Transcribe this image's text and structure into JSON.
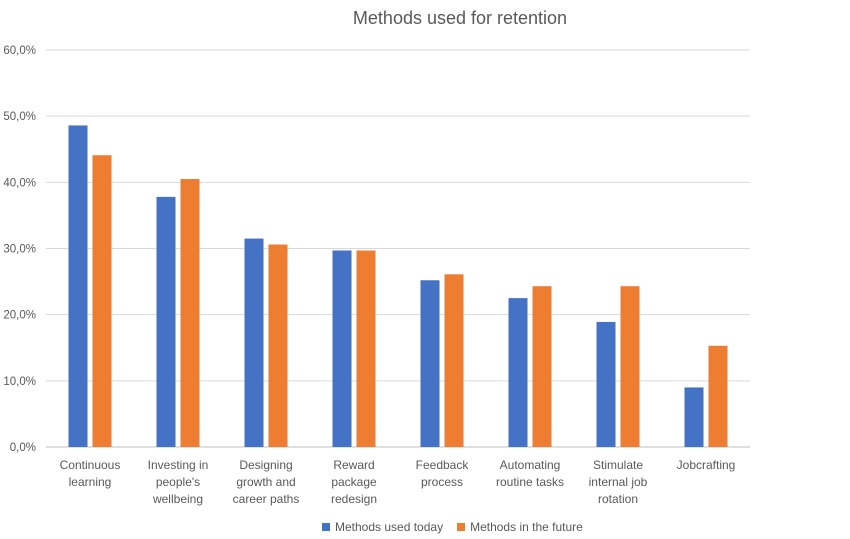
{
  "chart_data": {
    "type": "bar",
    "title": "Methods used for retention",
    "categories": [
      [
        "Continuous",
        "learning"
      ],
      [
        "Investing in",
        "people's",
        "wellbeing"
      ],
      [
        "Designing",
        "growth and",
        "career paths"
      ],
      [
        "Reward",
        "package",
        "redesign"
      ],
      [
        "Feedback",
        "process"
      ],
      [
        "Automating",
        "routine tasks"
      ],
      [
        "Stimulate",
        "internal job",
        "rotation"
      ],
      [
        "Jobcrafting"
      ]
    ],
    "series": [
      {
        "name": "Methods used today",
        "color": "#4472C4",
        "values": [
          48.6,
          37.8,
          31.5,
          29.7,
          25.2,
          22.5,
          18.9,
          9.0
        ]
      },
      {
        "name": "Methods in the future",
        "color": "#ED7D31",
        "values": [
          44.1,
          40.5,
          30.6,
          29.7,
          26.1,
          24.3,
          24.3,
          15.3
        ]
      }
    ],
    "yticks": [
      "0,0%",
      "10,0%",
      "20,0%",
      "30,0%",
      "40,0%",
      "50,0%",
      "60,0%"
    ],
    "ylim": [
      0,
      60
    ],
    "grid": true,
    "legend_position": "bottom"
  }
}
